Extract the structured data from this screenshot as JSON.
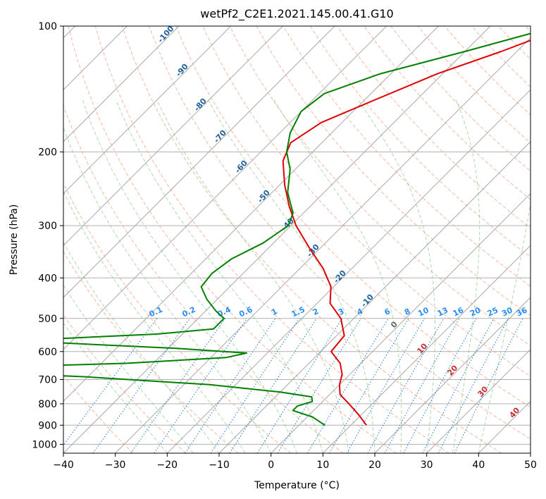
{
  "chart_data": {
    "type": "line",
    "title": "wetPf2_C2E1.2021.145.00.41.G10",
    "xlabel": "Temperature (°C)",
    "ylabel": "Pressure (hPa)",
    "xlim": [
      -40,
      50
    ],
    "ylim": [
      1050,
      100
    ],
    "y_scale": "log",
    "grid": true,
    "x_ticks": [
      "−40",
      "−30",
      "−20",
      "−10",
      "0",
      "10",
      "20",
      "30",
      "40",
      "50"
    ],
    "y_ticks": [
      "100",
      "200",
      "300",
      "400",
      "500",
      "600",
      "700",
      "800",
      "900",
      "1000"
    ],
    "series": [
      {
        "color": "#e00000",
        "points": [
          {
            "p": 100,
            "t": -25
          },
          {
            "p": 115,
            "t": -33
          },
          {
            "p": 130,
            "t": -41
          },
          {
            "p": 150,
            "t": -48
          },
          {
            "p": 170,
            "t": -54
          },
          {
            "p": 190,
            "t": -56
          },
          {
            "p": 210,
            "t": -54
          },
          {
            "p": 240,
            "t": -49
          },
          {
            "p": 270,
            "t": -44
          },
          {
            "p": 300,
            "t": -39
          },
          {
            "p": 340,
            "t": -32
          },
          {
            "p": 380,
            "t": -25.5
          },
          {
            "p": 420,
            "t": -20.5
          },
          {
            "p": 460,
            "t": -17.5
          },
          {
            "p": 500,
            "t": -12.5
          },
          {
            "p": 550,
            "t": -8.5
          },
          {
            "p": 600,
            "t": -8
          },
          {
            "p": 640,
            "t": -4
          },
          {
            "p": 680,
            "t": -1.5
          },
          {
            "p": 720,
            "t": 0
          },
          {
            "p": 760,
            "t": 2
          },
          {
            "p": 800,
            "t": 5.5
          },
          {
            "p": 850,
            "t": 9.5
          },
          {
            "p": 900,
            "t": 13
          }
        ]
      },
      {
        "color": "#008000",
        "points": [
          {
            "p": 100,
            "t": -27
          },
          {
            "p": 115,
            "t": -40
          },
          {
            "p": 130,
            "t": -52
          },
          {
            "p": 145,
            "t": -59
          },
          {
            "p": 160,
            "t": -60
          },
          {
            "p": 180,
            "t": -58
          },
          {
            "p": 200,
            "t": -55
          },
          {
            "p": 220,
            "t": -51
          },
          {
            "p": 250,
            "t": -47
          },
          {
            "p": 280,
            "t": -42
          },
          {
            "p": 300,
            "t": -40.5
          },
          {
            "p": 330,
            "t": -42
          },
          {
            "p": 360,
            "t": -45
          },
          {
            "p": 390,
            "t": -46
          },
          {
            "p": 420,
            "t": -45.5
          },
          {
            "p": 450,
            "t": -42
          },
          {
            "p": 480,
            "t": -38
          },
          {
            "p": 500,
            "t": -35
          },
          {
            "p": 530,
            "t": -35
          },
          {
            "p": 545,
            "t": -45
          },
          {
            "p": 558,
            "t": -62
          },
          {
            "p": 565,
            "t": -70
          },
          {
            "p": 575,
            "t": -58
          },
          {
            "p": 590,
            "t": -38
          },
          {
            "p": 605,
            "t": -24
          },
          {
            "p": 620,
            "t": -27
          },
          {
            "p": 640,
            "t": -45
          },
          {
            "p": 655,
            "t": -72
          },
          {
            "p": 665,
            "t": -80
          },
          {
            "p": 690,
            "t": -50
          },
          {
            "p": 720,
            "t": -25
          },
          {
            "p": 750,
            "t": -10
          },
          {
            "p": 770,
            "t": -3
          },
          {
            "p": 790,
            "t": -2
          },
          {
            "p": 810,
            "t": -4
          },
          {
            "p": 830,
            "t": -4
          },
          {
            "p": 860,
            "t": 1
          },
          {
            "p": 900,
            "t": 5
          }
        ]
      }
    ],
    "dry_adiabat_labels": [
      "-100",
      "-90",
      "-80",
      "-70",
      "-60",
      "-50",
      "-40",
      "-30",
      "-20",
      "-10",
      "0",
      "10",
      "20",
      "30",
      "40"
    ],
    "mixing_ratio_labels": [
      "0.1",
      "0.2",
      "0.4",
      "0.6",
      "1",
      "1.5",
      "2",
      "3",
      "4",
      "6",
      "8",
      "10",
      "13",
      "16",
      "20",
      "25",
      "30",
      "36"
    ]
  }
}
